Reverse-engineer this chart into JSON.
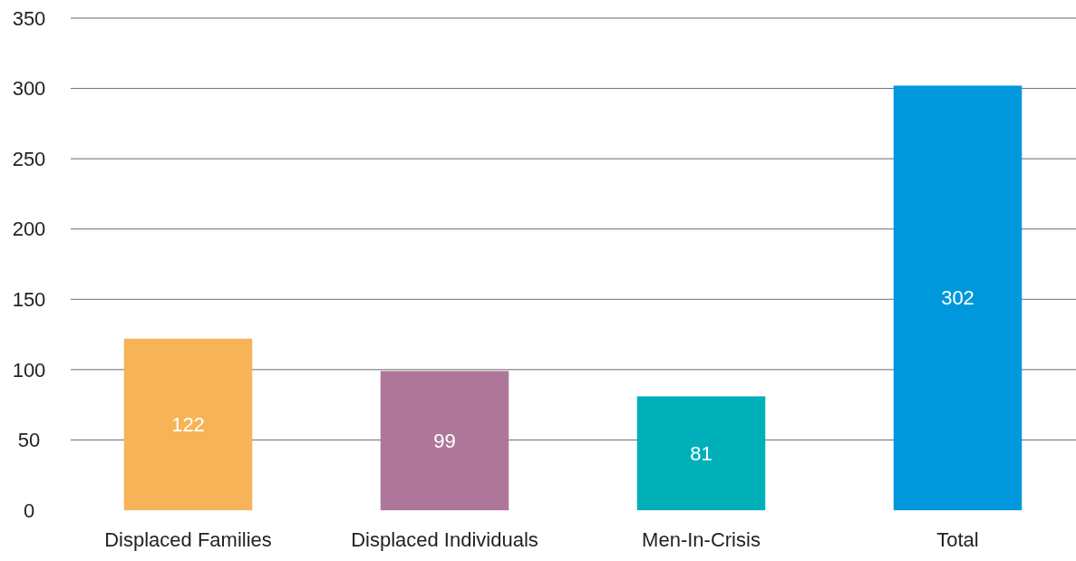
{
  "chart_data": {
    "type": "bar",
    "categories": [
      "Displaced Families",
      "Displaced Individuals",
      "Men-In-Crisis",
      "Total"
    ],
    "values": [
      122,
      99,
      81,
      302
    ],
    "colors": [
      "#f7b357",
      "#ae7799",
      "#00b0b9",
      "#0098dd"
    ],
    "ylim": [
      0,
      350
    ],
    "yticks": [
      0,
      50,
      100,
      150,
      200,
      250,
      300,
      350
    ],
    "grid": "y",
    "data_labels": true
  }
}
